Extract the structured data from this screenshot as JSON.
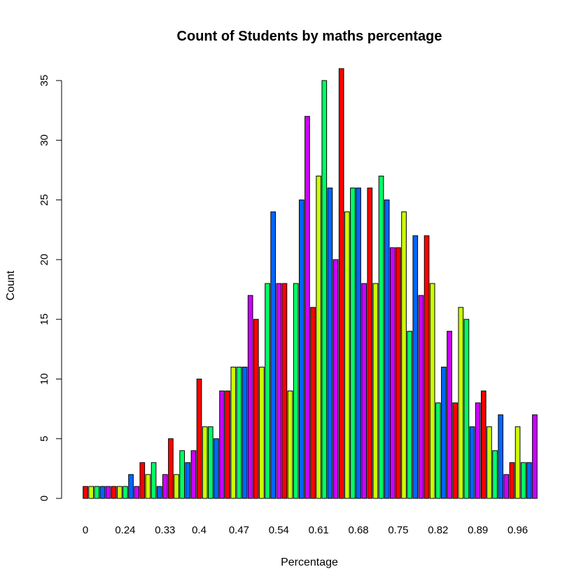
{
  "chart_data": {
    "type": "bar",
    "title": "Count of Students by maths percentage",
    "xlabel": "Percentage",
    "ylabel": "Count",
    "ylim": [
      0,
      36
    ],
    "y_ticks": [
      0,
      5,
      10,
      15,
      20,
      25,
      30,
      35
    ],
    "x_tick_labels": [
      "0",
      "0.24",
      "0.33",
      "0.4",
      "0.47",
      "0.54",
      "0.61",
      "0.68",
      "0.75",
      "0.82",
      "0.89",
      "0.96"
    ],
    "x_tick_bar_index": [
      0,
      7,
      14,
      20,
      27,
      34,
      41,
      48,
      55,
      62,
      69,
      76
    ],
    "grid": false,
    "legend": "none",
    "palette": [
      "#FF0000",
      "#CCFF00",
      "#00FF66",
      "#0066FF",
      "#CC00FF"
    ],
    "values": [
      1,
      1,
      1,
      1,
      1,
      1,
      1,
      1,
      2,
      1,
      3,
      2,
      3,
      1,
      2,
      5,
      2,
      4,
      3,
      4,
      10,
      6,
      6,
      5,
      9,
      9,
      11,
      11,
      11,
      17,
      15,
      11,
      18,
      24,
      18,
      18,
      9,
      18,
      25,
      32,
      16,
      27,
      35,
      26,
      20,
      36,
      24,
      26,
      26,
      18,
      26,
      18,
      27,
      25,
      21,
      21,
      24,
      14,
      22,
      17,
      22,
      18,
      8,
      11,
      14,
      8,
      16,
      15,
      6,
      8,
      9,
      6,
      4,
      7,
      2,
      3,
      6,
      3,
      3,
      7
    ]
  }
}
